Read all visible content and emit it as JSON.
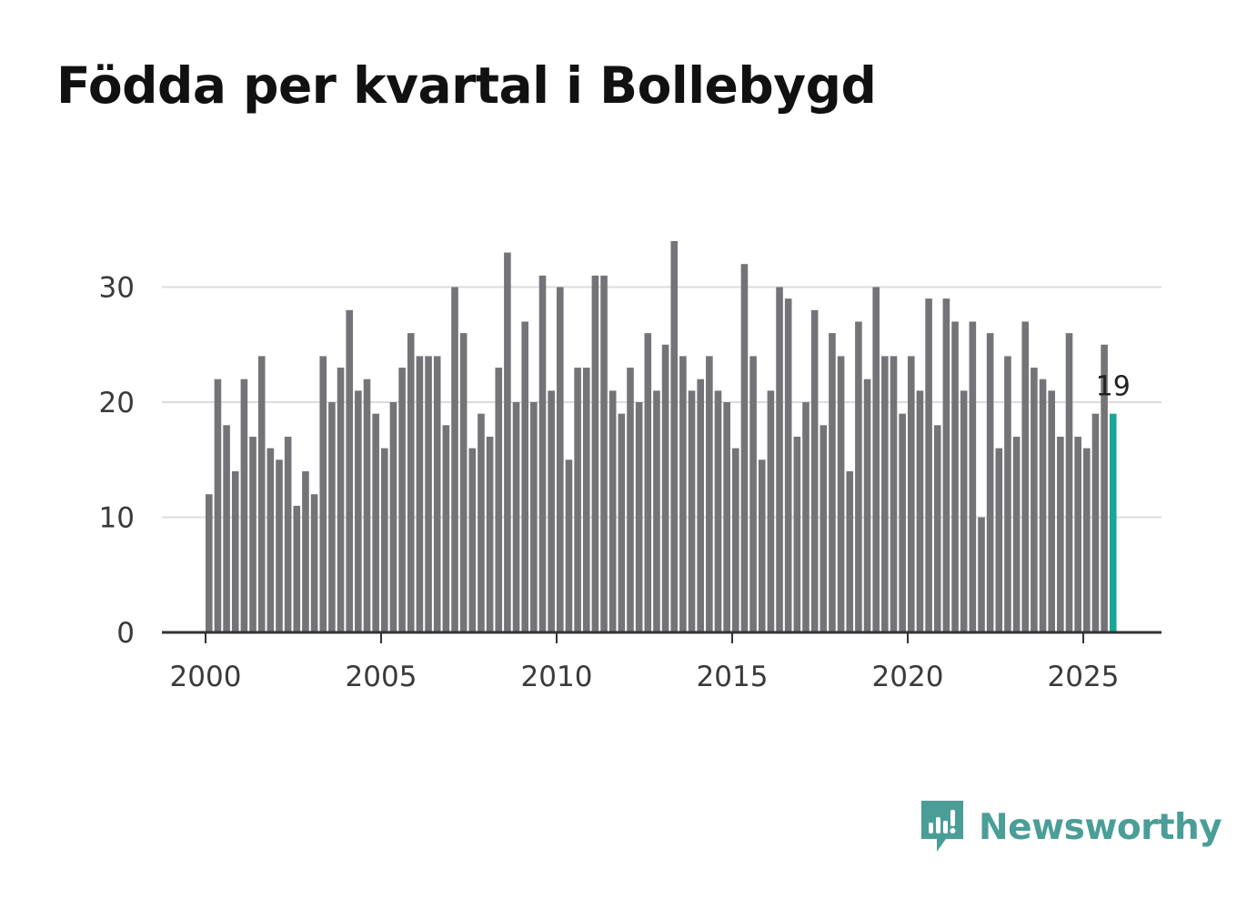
{
  "title": "Födda per kvartal i Bollebygd",
  "brand": {
    "name": "Newsworthy",
    "color": "#4a9e97"
  },
  "chart_data": {
    "type": "bar",
    "title": "Födda per kvartal i Bollebygd",
    "xlabel": "",
    "ylabel": "",
    "x_start": 2000.0,
    "x_step": 0.25,
    "ylim": [
      0,
      36
    ],
    "yticks": [
      0,
      10,
      20,
      30
    ],
    "xticks": [
      2000,
      2005,
      2010,
      2015,
      2020,
      2025
    ],
    "grid": true,
    "bar_color": "#747478",
    "highlight_color": "#1aa697",
    "highlight_label": "19",
    "values": [
      12,
      22,
      18,
      14,
      22,
      17,
      24,
      16,
      15,
      17,
      11,
      14,
      12,
      24,
      20,
      23,
      28,
      21,
      22,
      19,
      16,
      20,
      23,
      26,
      24,
      24,
      24,
      18,
      30,
      26,
      16,
      19,
      17,
      23,
      33,
      20,
      27,
      20,
      31,
      21,
      30,
      15,
      23,
      23,
      31,
      31,
      21,
      19,
      23,
      20,
      26,
      21,
      25,
      34,
      24,
      21,
      22,
      24,
      21,
      20,
      16,
      32,
      24,
      15,
      21,
      30,
      29,
      17,
      20,
      28,
      18,
      26,
      24,
      14,
      27,
      22,
      30,
      24,
      24,
      19,
      24,
      21,
      29,
      18,
      29,
      27,
      21,
      27,
      10,
      26,
      16,
      24,
      17,
      27,
      23,
      22,
      21,
      17,
      26,
      17,
      16,
      19,
      25,
      19
    ]
  }
}
